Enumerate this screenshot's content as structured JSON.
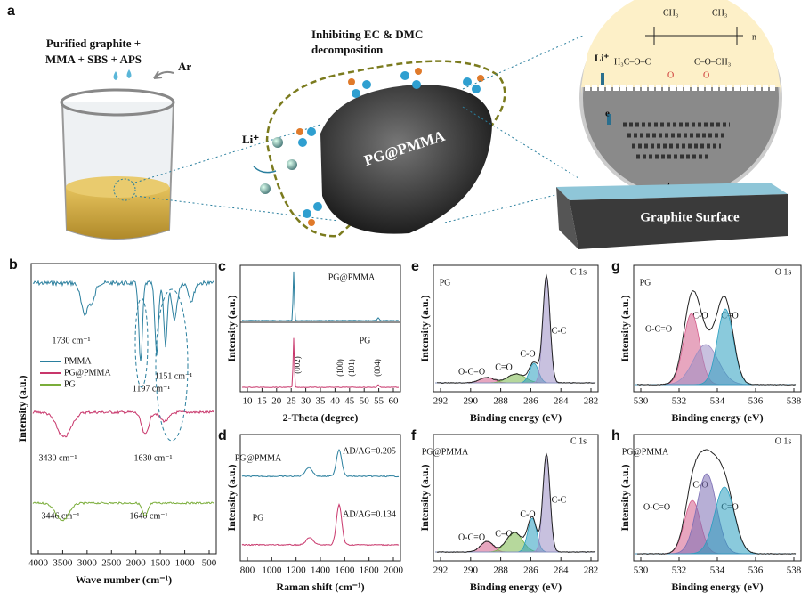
{
  "panel_a": {
    "label": "a",
    "reagents": [
      "Purified graphite +",
      "MMA + SBS + APS"
    ],
    "gas": "Ar",
    "inhibit": [
      "Inhibiting EC & DMC",
      "decomposition"
    ],
    "particle": "PG@PMMA",
    "ion": "Li⁺",
    "electron": "e",
    "surface": "Graphite Surface",
    "formula": [
      "CH₃",
      "CH₃",
      "n",
      "H₃C–O–C",
      "C–O–CH₃",
      "O",
      "O",
      "Li⁺"
    ]
  },
  "panels": {
    "b": {
      "label": "b",
      "ylabel": "Intensity (a.u.)",
      "xlabel": "Wave number (cm⁻¹)",
      "xticks": [
        4000,
        3500,
        3000,
        2500,
        2000,
        1500,
        1000,
        500
      ],
      "legend": [
        {
          "name": "PMMA",
          "color": "#2a7f9e"
        },
        {
          "name": "PG@PMMA",
          "color": "#c8366b"
        },
        {
          "name": "PG",
          "color": "#7aad3a"
        }
      ],
      "annotations": [
        "1730 cm⁻¹",
        "1151 cm⁻¹",
        "1197 cm⁻¹",
        "3430 cm⁻¹",
        "1630 cm⁻¹",
        "3446 cm⁻¹",
        "1640 cm⁻¹"
      ]
    },
    "c": {
      "label": "c",
      "ylabel": "Intensity (a.u.)",
      "xlabel": "2-Theta (degree)",
      "xticks": [
        10,
        15,
        20,
        25,
        30,
        35,
        40,
        45,
        50,
        55,
        60
      ],
      "annotations": [
        "PG@PMMA",
        "PG",
        "(002)",
        "(100)",
        "(101)",
        "(004)"
      ]
    },
    "d": {
      "label": "d",
      "ylabel": "Intensity (a.u.)",
      "xlabel": "Raman shift (cm⁻¹)",
      "xticks": [
        800,
        1000,
        1200,
        1400,
        1600,
        1800,
        2000
      ],
      "annotations": [
        "PG@PMMA",
        "PG",
        "AD/AG=0.205",
        "AD/AG=0.134"
      ]
    },
    "e": {
      "label": "e",
      "ylabel": "Intensity (a.u.)",
      "xlabel": "Binding energy (eV)",
      "xticks": [
        292,
        290,
        288,
        286,
        284,
        282
      ],
      "annotations": [
        "PG",
        "C 1s",
        "O-C=O",
        "C=O",
        "C-O",
        "C-C"
      ]
    },
    "f": {
      "label": "f",
      "ylabel": "Intensity (a.u.)",
      "xlabel": "Binding energy (eV)",
      "xticks": [
        292,
        290,
        288,
        286,
        284,
        282
      ],
      "annotations": [
        "PG@PMMA",
        "C 1s",
        "O-C=O",
        "C=O",
        "C-O",
        "C-C"
      ]
    },
    "g": {
      "label": "g",
      "ylabel": "Intensity (a.u.)",
      "xlabel": "Binding energy (eV)",
      "xticks": [
        530,
        532,
        534,
        536,
        538
      ],
      "annotations": [
        "PG",
        "O 1s",
        "O-C=O",
        "C-O",
        "C=O"
      ]
    },
    "h": {
      "label": "h",
      "ylabel": "Intensity (a.u.)",
      "xlabel": "Binding energy (eV)",
      "xticks": [
        530,
        532,
        534,
        536,
        538
      ],
      "annotations": [
        "PG@PMMA",
        "O 1s",
        "O-C=O",
        "C-O",
        "C=O"
      ]
    }
  }
}
